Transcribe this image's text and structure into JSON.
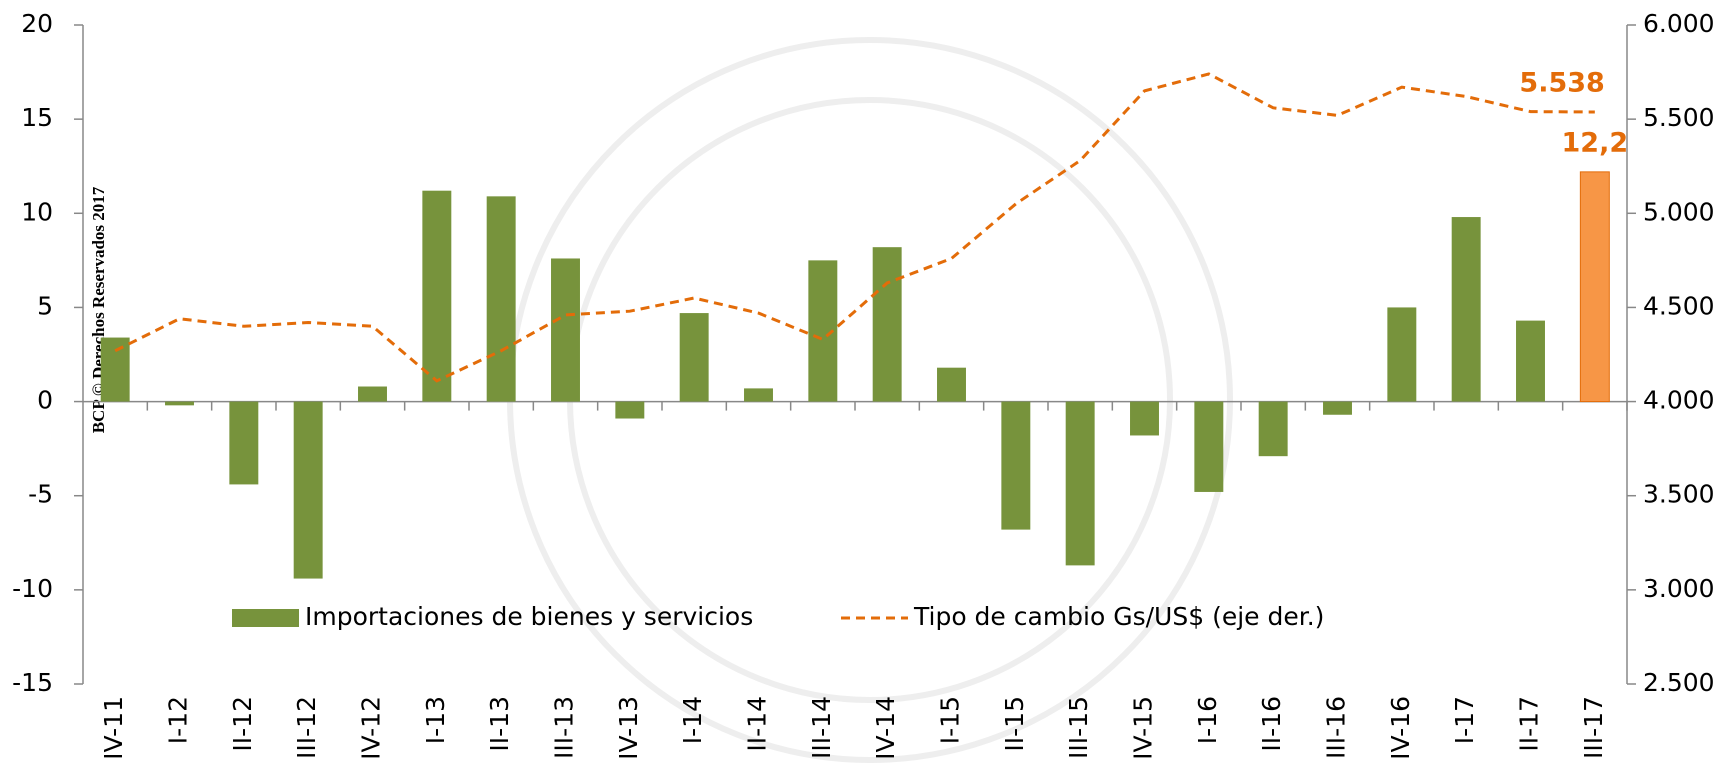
{
  "chart_data": {
    "type": "bar_line",
    "watermark": "BCP © Derechos Reservados 2017",
    "categories": [
      "IV-11",
      "I-12",
      "II-12",
      "III-12",
      "IV-12",
      "I-13",
      "II-13",
      "III-13",
      "IV-13",
      "I-14",
      "II-14",
      "III-14",
      "IV-14",
      "I-15",
      "II-15",
      "III-15",
      "IV-15",
      "I-16",
      "II-16",
      "III-16",
      "IV-16",
      "I-17",
      "II-17",
      "III-17"
    ],
    "series": [
      {
        "name": "Importaciones de bienes y servicios",
        "type": "bar",
        "colors": [
          "#77933c",
          "#77933c",
          "#77933c",
          "#77933c",
          "#77933c",
          "#77933c",
          "#77933c",
          "#77933c",
          "#77933c",
          "#77933c",
          "#77933c",
          "#77933c",
          "#77933c",
          "#77933c",
          "#77933c",
          "#77933c",
          "#77933c",
          "#77933c",
          "#77933c",
          "#77933c",
          "#77933c",
          "#77933c",
          "#77933c",
          "#f79646"
        ],
        "color": "#77933c",
        "values": [
          3.4,
          -0.2,
          -4.4,
          -9.4,
          0.8,
          11.2,
          10.9,
          7.6,
          -0.9,
          4.7,
          0.7,
          7.5,
          8.2,
          1.8,
          -6.8,
          -8.7,
          -1.8,
          -4.8,
          -2.9,
          -0.7,
          5.0,
          9.8,
          4.3,
          12.2
        ],
        "value_labels": [
          null,
          null,
          null,
          null,
          null,
          null,
          null,
          null,
          null,
          null,
          null,
          null,
          null,
          null,
          null,
          null,
          null,
          null,
          null,
          null,
          null,
          null,
          null,
          "12,2"
        ]
      },
      {
        "name": "Tipo de cambio Gs/US$ (eje der.)",
        "type": "line",
        "axis": "y2",
        "color": "#e36c09",
        "dashed": true,
        "values": [
          4270,
          4440,
          4400,
          4420,
          4400,
          4110,
          4270,
          4460,
          4480,
          4550,
          4470,
          4330,
          4630,
          4760,
          5050,
          5280,
          5650,
          5740,
          5560,
          5520,
          5670,
          5620,
          5540,
          5538
        ],
        "value_labels": [
          null,
          null,
          null,
          null,
          null,
          null,
          null,
          null,
          null,
          null,
          null,
          null,
          null,
          null,
          null,
          null,
          null,
          null,
          null,
          null,
          null,
          null,
          null,
          "5.538"
        ]
      }
    ],
    "ylim": [
      -15,
      20
    ],
    "yticks": [
      -15,
      -10,
      -5,
      0,
      5,
      10,
      15,
      20
    ],
    "y2lim": [
      2500,
      6000
    ],
    "y2ticks": [
      {
        "value": 2500,
        "label": "2.500"
      },
      {
        "value": 3000,
        "label": "3.000"
      },
      {
        "value": 3500,
        "label": "3.500"
      },
      {
        "value": 4000,
        "label": "4.000"
      },
      {
        "value": 4500,
        "label": "4.500"
      },
      {
        "value": 5000,
        "label": "5.000"
      },
      {
        "value": 5500,
        "label": "5.500"
      },
      {
        "value": 6000,
        "label": "6.000"
      }
    ],
    "legend": "bottom-center"
  }
}
